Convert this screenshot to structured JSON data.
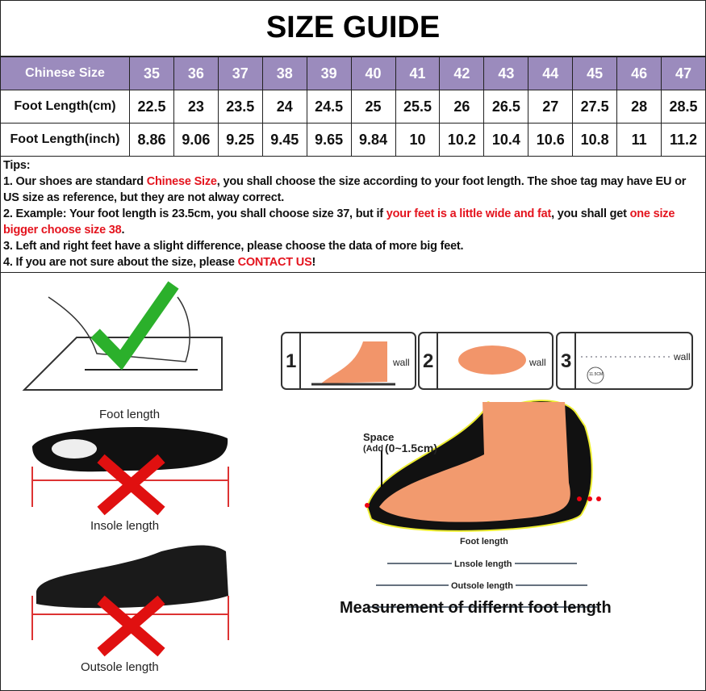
{
  "title": "SIZE GUIDE",
  "table": {
    "header_color": "#9b8bbd",
    "rows": [
      {
        "label": "Chinese Size",
        "values": [
          "35",
          "36",
          "37",
          "38",
          "39",
          "40",
          "41",
          "42",
          "43",
          "44",
          "45",
          "46",
          "47"
        ]
      },
      {
        "label": "Foot Length(cm)",
        "values": [
          "22.5",
          "23",
          "23.5",
          "24",
          "24.5",
          "25",
          "25.5",
          "26",
          "26.5",
          "27",
          "27.5",
          "28",
          "28.5"
        ]
      },
      {
        "label": "Foot Length(inch)",
        "values": [
          "8.86",
          "9.06",
          "9.25",
          "9.45",
          "9.65",
          "9.84",
          "10",
          "10.2",
          "10.4",
          "10.6",
          "10.8",
          "11",
          "11.2"
        ]
      }
    ]
  },
  "tips": {
    "heading": "Tips:",
    "t1a": "1. Our shoes are standard ",
    "t1b": "Chinese Size",
    "t1c": ", you shall choose the size according to your foot length. The shoe tag may have EU or US size as reference, but they are not alway correct.",
    "t2a": "2. Example: Your foot length is 23.5cm, you shall choose size 37, but if ",
    "t2b": "your feet is a little wide and fat",
    "t2c": ", you shall get ",
    "t2d": "one size bigger choose size 38",
    "t2e": ".",
    "t3": "3. Left and right feet have a slight difference, please choose the data of more big feet.",
    "t4a": "4. If you are not sure about the size, please ",
    "t4b": "CONTACT US",
    "t4c": "!",
    "accent_color": "#e4141e"
  },
  "left_panel": {
    "foot_length": "Foot length",
    "insole_length": "Insole length",
    "outsole_length": "Outsole length"
  },
  "steps": [
    {
      "num": "1",
      "wall": "wall"
    },
    {
      "num": "2",
      "wall": "wall"
    },
    {
      "num": "3",
      "wall": "wall",
      "ruler": "11.5CM"
    }
  ],
  "diagram": {
    "space": "Space",
    "add": "(Add",
    "range": "(0~1.5cm)",
    "foot_length": "Foot length",
    "insole_length": "Lnsole length",
    "outsole_length": "Outsole length",
    "caption": "Measurement of differnt foot length"
  }
}
